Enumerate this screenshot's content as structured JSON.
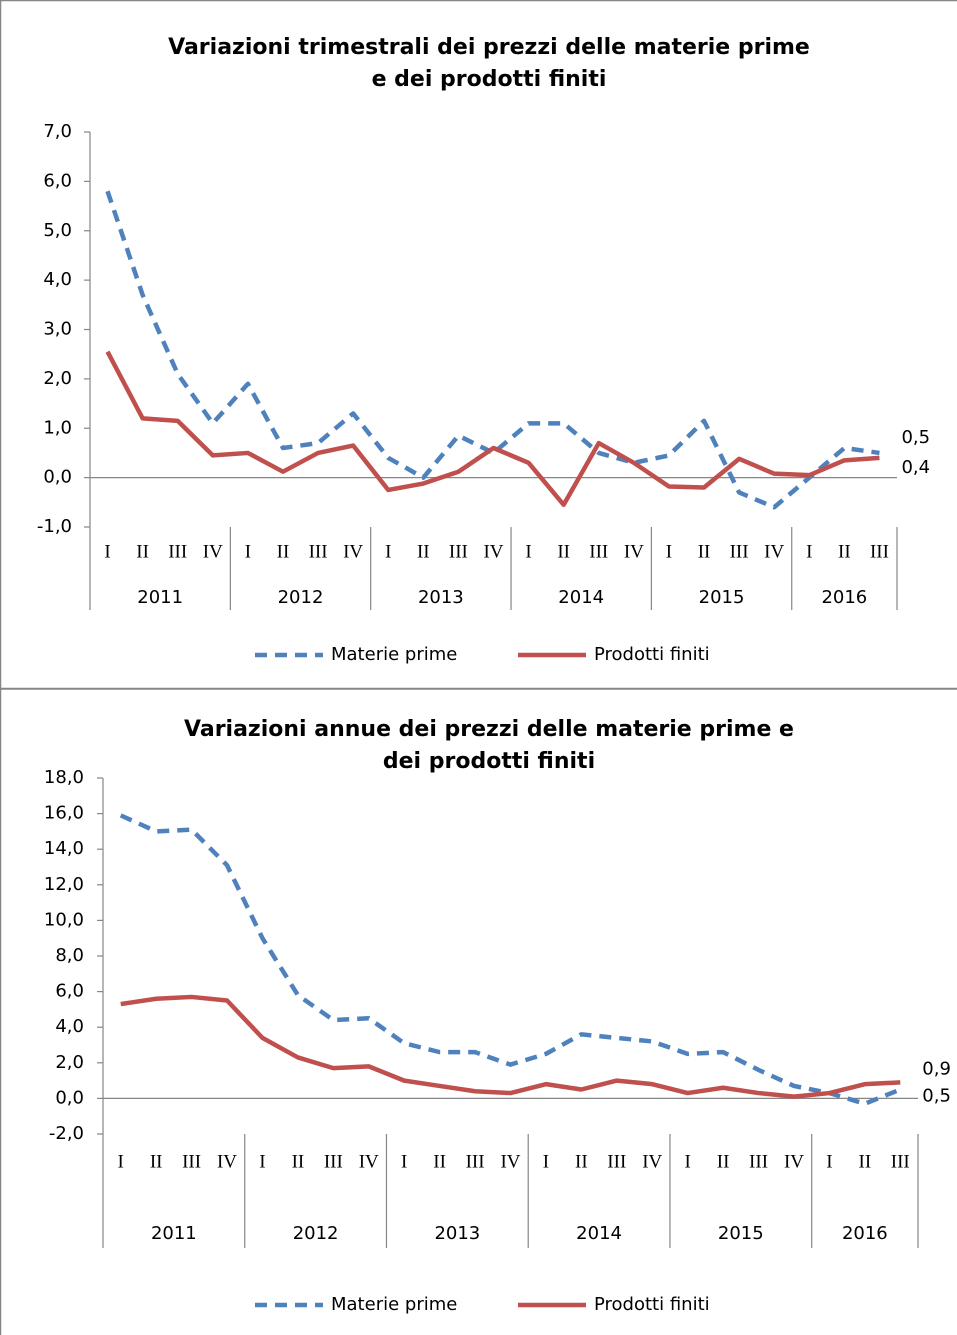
{
  "chart_data": [
    {
      "type": "line",
      "title": [
        "Variazioni trimestrali dei prezzi delle materie prime",
        "e dei prodotti finiti"
      ],
      "categories": [
        "I",
        "II",
        "III",
        "IV",
        "I",
        "II",
        "III",
        "IV",
        "I",
        "II",
        "III",
        "IV",
        "I",
        "II",
        "III",
        "IV",
        "I",
        "II",
        "III",
        "IV",
        "I",
        "II",
        "III"
      ],
      "groups": [
        "2011",
        "2012",
        "2013",
        "2014",
        "2015",
        "2016"
      ],
      "ylim": [
        -1,
        7
      ],
      "yticks": [
        {
          "value": -1,
          "label": "-1,0"
        },
        {
          "value": 0,
          "label": "0,0"
        },
        {
          "value": 1,
          "label": "1,0"
        },
        {
          "value": 2,
          "label": "2,0"
        },
        {
          "value": 3,
          "label": "3,0"
        },
        {
          "value": 4,
          "label": "4,0"
        },
        {
          "value": 5,
          "label": "5,0"
        },
        {
          "value": 6,
          "label": "6,0"
        },
        {
          "value": 7,
          "label": "7,0"
        }
      ],
      "series": [
        {
          "name": "Materie prime",
          "color": "#4f81bd",
          "dashed": true,
          "end_label": "0,5",
          "values": [
            5.8,
            3.7,
            2.1,
            1.1,
            1.9,
            0.6,
            0.7,
            1.3,
            0.4,
            0.0,
            0.85,
            0.5,
            1.1,
            1.1,
            0.5,
            0.3,
            0.45,
            1.15,
            -0.3,
            -0.6,
            0.0,
            0.6,
            0.5
          ]
        },
        {
          "name": "Prodotti finiti",
          "color": "#c0504d",
          "dashed": false,
          "end_label": "0,4",
          "end_label_color": "#ff0000",
          "values": [
            2.55,
            1.2,
            1.15,
            0.45,
            0.5,
            0.12,
            0.5,
            0.65,
            -0.25,
            -0.12,
            0.12,
            0.6,
            0.3,
            -0.55,
            0.7,
            0.3,
            -0.18,
            -0.2,
            0.38,
            0.08,
            0.05,
            0.35,
            0.4
          ]
        }
      ]
    },
    {
      "type": "line",
      "title": [
        "Variazioni annue dei prezzi delle materie prime e",
        "dei prodotti finiti"
      ],
      "categories": [
        "I",
        "II",
        "III",
        "IV",
        "I",
        "II",
        "III",
        "IV",
        "I",
        "II",
        "III",
        "IV",
        "I",
        "II",
        "III",
        "IV",
        "I",
        "II",
        "III",
        "IV",
        "I",
        "II",
        "III"
      ],
      "groups": [
        "2011",
        "2012",
        "2013",
        "2014",
        "2015",
        "2016"
      ],
      "ylim": [
        -2,
        18
      ],
      "yticks": [
        {
          "value": -2,
          "label": "-2,0"
        },
        {
          "value": 0,
          "label": "0,0"
        },
        {
          "value": 2,
          "label": "2,0"
        },
        {
          "value": 4,
          "label": "4,0"
        },
        {
          "value": 6,
          "label": "6,0"
        },
        {
          "value": 8,
          "label": "8,0"
        },
        {
          "value": 10,
          "label": "10,0"
        },
        {
          "value": 12,
          "label": "12,0"
        },
        {
          "value": 14,
          "label": "14,0"
        },
        {
          "value": 16,
          "label": "16,0"
        },
        {
          "value": 18,
          "label": "18,0"
        }
      ],
      "series": [
        {
          "name": "Materie prime",
          "color": "#4f81bd",
          "dashed": true,
          "end_label": "0,5",
          "values": [
            15.9,
            15.0,
            15.1,
            13.1,
            9.0,
            5.8,
            4.4,
            4.5,
            3.1,
            2.6,
            2.6,
            1.9,
            2.5,
            3.6,
            3.4,
            3.2,
            2.5,
            2.6,
            1.6,
            0.7,
            0.3,
            -0.3,
            0.5
          ]
        },
        {
          "name": "Prodotti finiti",
          "color": "#c0504d",
          "dashed": false,
          "end_label": "0,9",
          "end_label_color": "#ff0000",
          "values": [
            5.3,
            5.6,
            5.7,
            5.5,
            3.4,
            2.3,
            1.7,
            1.8,
            1.0,
            0.7,
            0.4,
            0.3,
            0.8,
            0.5,
            1.0,
            0.8,
            0.3,
            0.6,
            0.3,
            0.1,
            0.3,
            0.8,
            0.9
          ]
        }
      ]
    }
  ]
}
